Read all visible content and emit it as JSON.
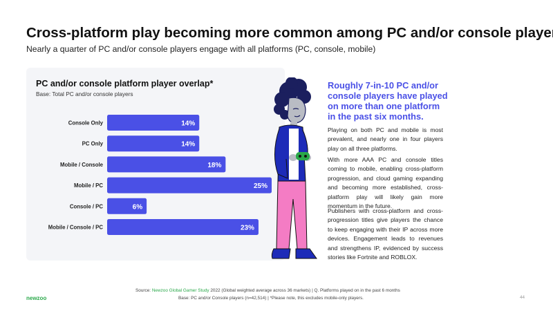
{
  "page": {
    "title": "Cross-platform play becoming more common among PC and/or console players",
    "subtitle": "Nearly a quarter of PC and/or console players engage with all platforms (PC, console, mobile)"
  },
  "chart_data": {
    "type": "bar",
    "orientation": "horizontal",
    "title": "PC and/or console platform player overlap*",
    "subtitle": "Base: Total PC and/or console players",
    "categories": [
      "Console Only",
      "PC Only",
      "Mobile / Console",
      "Mobile / PC",
      "Console / PC",
      "Mobile / Console / PC"
    ],
    "values": [
      14,
      14,
      18,
      25,
      6,
      23
    ],
    "value_labels": [
      "14%",
      "14%",
      "18%",
      "25%",
      "6%",
      "23%"
    ],
    "xlim": [
      0,
      25
    ],
    "bar_color": "#4a50e6",
    "label_color": "#ffffff",
    "grid": false,
    "legend": "none"
  },
  "sidebar": {
    "callout": "Roughly 7-in-10 PC and/or console players have played on more than one platform in the past six months.",
    "paragraphs": [
      "Playing on both PC and mobile is most prevalent, and nearly one in four players play on all three platforms.",
      "With more AAA PC and console titles coming to mobile, enabling cross-platform progression, and cloud gaming expanding and becoming more established, cross-platform play will likely gain more momentum in the future.",
      "Publishers with cross-platform and cross-progression titles give players the chance to keep engaging with their IP across more devices. Engagement leads to revenues and strengthens IP, evidenced by success stories like Fortnite and ROBLOX."
    ]
  },
  "footer": {
    "source_label": "Source:",
    "source_link": "Newzoo Global Gamer Study",
    "source_rest": "2022 (Global weighted average across 36 markets)  |  Q. Platforms played on in the past 6 months",
    "base_label": "Base:",
    "base_rest": "PC and/or Console players (n=42,514)  |  *Please note, this excludes mobile-only players.",
    "logo": "newzoo",
    "page_number": "44"
  },
  "colors": {
    "accent": "#4a50e6",
    "brand_green": "#2aa84a",
    "panel_bg": "#f4f5f8"
  }
}
